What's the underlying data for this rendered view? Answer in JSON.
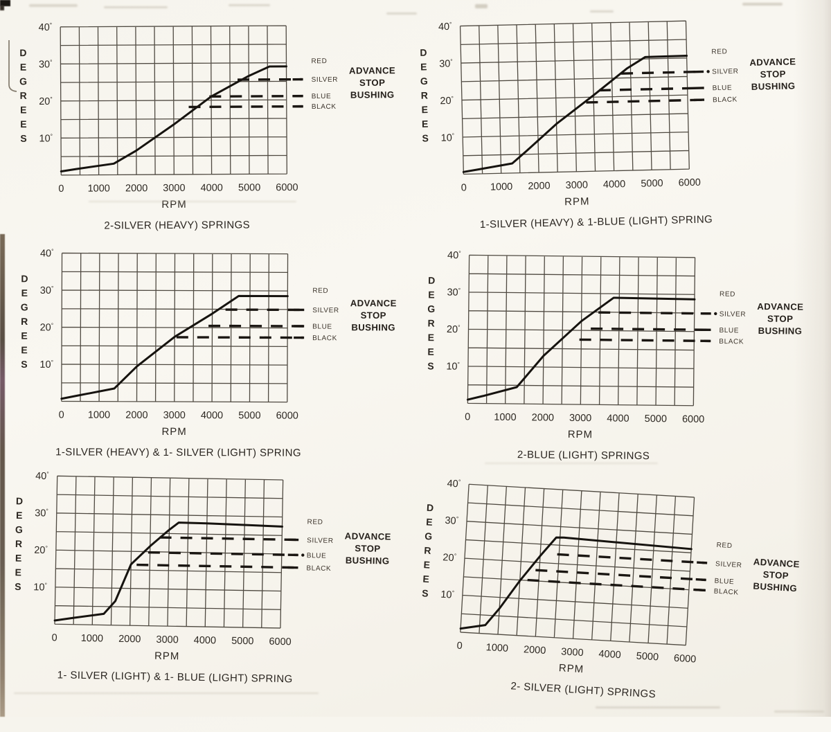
{
  "document": {
    "kind": "scanned page of distributor advance curve charts",
    "background_color": "#f6f4ed",
    "ink_color": "#1a1612"
  },
  "shared": {
    "ylabel": "DEGREES",
    "xlabel": "RPM",
    "y_tick_labels": [
      "40°",
      "30°",
      "20°",
      "10°"
    ],
    "x_tick_labels": [
      "0",
      "1000",
      "2000",
      "3000",
      "4000",
      "5000",
      "6000"
    ],
    "side_note_lines": [
      "ADVANCE",
      "STOP",
      "BUSHING"
    ],
    "stop_bushing_labels": [
      "RED",
      "SILVER",
      "BLUE",
      "BLACK"
    ]
  },
  "chart_data": [
    {
      "type": "line",
      "title": "2-SILVER (HEAVY) SPRINGS",
      "xlabel": "RPM",
      "ylabel": "DEGREES",
      "xlim": [
        0,
        6000
      ],
      "ylim": [
        0,
        40
      ],
      "x_ticks": [
        0,
        1000,
        2000,
        3000,
        4000,
        5000,
        6000
      ],
      "y_ticks": [
        10,
        20,
        30,
        40
      ],
      "grid_step_x": 500,
      "grid_step_y": 5,
      "curve_rpm_deg": [
        [
          0,
          1
        ],
        [
          400,
          1.6
        ],
        [
          1400,
          3
        ],
        [
          2000,
          6.5
        ],
        [
          3000,
          13.5
        ],
        [
          4000,
          21
        ],
        [
          5000,
          26.5
        ],
        [
          5550,
          29
        ],
        [
          6000,
          29
        ]
      ],
      "advance_stops": [
        {
          "label": "RED",
          "degrees": 30.5,
          "dashed": false
        },
        {
          "label": "SILVER",
          "degrees": 25.5,
          "dashed": true,
          "start_rpm": 4700
        },
        {
          "label": "BLUE",
          "degrees": 21,
          "dashed": true,
          "start_rpm": 3950
        },
        {
          "label": "BLACK",
          "degrees": 18.2,
          "dashed": true,
          "start_rpm": 3400
        }
      ],
      "side_note": [
        "ADVANCE",
        "STOP",
        "BUSHING"
      ],
      "note_center_deg": 24.4,
      "title_dx": 4,
      "rotation_deg": -0.3
    },
    {
      "type": "line",
      "title": "1-SILVER (HEAVY) & 1-BLUE (LIGHT) SPRING",
      "xlabel": "RPM",
      "ylabel": "DEGREES",
      "xlim": [
        0,
        6000
      ],
      "ylim": [
        0,
        40
      ],
      "x_ticks": [
        0,
        1000,
        2000,
        3000,
        4000,
        5000,
        6000
      ],
      "y_ticks": [
        10,
        20,
        30,
        40
      ],
      "grid_step_x": 500,
      "grid_step_y": 5,
      "curve_rpm_deg": [
        [
          0,
          0.6
        ],
        [
          400,
          1.2
        ],
        [
          1300,
          2.6
        ],
        [
          1700,
          6
        ],
        [
          2500,
          13
        ],
        [
          3500,
          20.5
        ],
        [
          4400,
          27.5
        ],
        [
          4900,
          30.5
        ],
        [
          6000,
          30.6
        ]
      ],
      "advance_stops": [
        {
          "label": "RED",
          "degrees": 31.6,
          "dashed": false
        },
        {
          "label": "SILVER",
          "degrees": 26.2,
          "dashed": true,
          "start_rpm": 4250,
          "dot": true
        },
        {
          "label": "BLUE",
          "degrees": 21.8,
          "dashed": true,
          "start_rpm": 3650
        },
        {
          "label": "BLACK",
          "degrees": 18.6,
          "dashed": true,
          "start_rpm": 3300
        }
      ],
      "side_note": [
        "ADVANCE",
        "STOP",
        "BUSHING"
      ],
      "note_center_deg": 25.0,
      "title_dx": 27,
      "rotation_deg": -1.3
    },
    {
      "type": "line",
      "title": "1-SILVER (HEAVY) & 1- SILVER (LIGHT) SPRING",
      "xlabel": "RPM",
      "ylabel": "DEGREES",
      "xlim": [
        0,
        6000
      ],
      "ylim": [
        0,
        40
      ],
      "x_ticks": [
        0,
        1000,
        2000,
        3000,
        4000,
        5000,
        6000
      ],
      "y_ticks": [
        10,
        20,
        30,
        40
      ],
      "grid_step_x": 500,
      "grid_step_y": 5,
      "curve_rpm_deg": [
        [
          0,
          0.7
        ],
        [
          400,
          1.5
        ],
        [
          1400,
          3.5
        ],
        [
          2000,
          9.5
        ],
        [
          3000,
          17.5
        ],
        [
          4000,
          23.8
        ],
        [
          4700,
          28.6
        ],
        [
          6000,
          28.6
        ]
      ],
      "advance_stops": [
        {
          "label": "RED",
          "degrees": 30.2,
          "dashed": false
        },
        {
          "label": "SILVER",
          "degrees": 24.9,
          "dashed": true,
          "start_rpm": 4350
        },
        {
          "label": "BLUE",
          "degrees": 20.5,
          "dashed": true,
          "start_rpm": 3900
        },
        {
          "label": "BLACK",
          "degrees": 17.4,
          "dashed": true,
          "start_rpm": 3050
        }
      ],
      "side_note": [
        "ADVANCE",
        "STOP",
        "BUSHING"
      ],
      "note_center_deg": 23.4,
      "title_dx": 6,
      "rotation_deg": 0.2
    },
    {
      "type": "line",
      "title": "2-BLUE (LIGHT) SPRINGS",
      "xlabel": "RPM",
      "ylabel": "DEGREES",
      "xlim": [
        0,
        6000
      ],
      "ylim": [
        0,
        40
      ],
      "x_ticks": [
        0,
        1000,
        2000,
        3000,
        4000,
        5000,
        6000
      ],
      "y_ticks": [
        10,
        20,
        30,
        40
      ],
      "grid_step_x": 500,
      "grid_step_y": 5,
      "curve_rpm_deg": [
        [
          0,
          1
        ],
        [
          400,
          2
        ],
        [
          1300,
          4.5
        ],
        [
          2000,
          13
        ],
        [
          3000,
          22.5
        ],
        [
          3850,
          28.9
        ],
        [
          6000,
          28.7
        ]
      ],
      "advance_stops": [
        {
          "label": "RED",
          "degrees": 30.3,
          "dashed": false
        },
        {
          "label": "SILVER",
          "degrees": 24.9,
          "dashed": true,
          "start_rpm": 3450,
          "dot": true
        },
        {
          "label": "BLUE",
          "degrees": 20.5,
          "dashed": true,
          "start_rpm": 3250
        },
        {
          "label": "BLACK",
          "degrees": 17.5,
          "dashed": true,
          "start_rpm": 2950
        }
      ],
      "side_note": [
        "ADVANCE",
        "STOP",
        "BUSHING"
      ],
      "note_center_deg": 23.6,
      "title_dx": 5,
      "rotation_deg": 0.6
    },
    {
      "type": "line",
      "title": "1- SILVER (LIGHT) & 1- BLUE (LIGHT) SPRING",
      "xlabel": "RPM",
      "ylabel": "DEGREES",
      "xlim": [
        0,
        6000
      ],
      "ylim": [
        0,
        40
      ],
      "x_ticks": [
        0,
        1000,
        2000,
        3000,
        4000,
        5000,
        6000
      ],
      "y_ticks": [
        10,
        20,
        30,
        40
      ],
      "grid_step_x": 500,
      "grid_step_y": 5,
      "curve_rpm_deg": [
        [
          0,
          1
        ],
        [
          500,
          1.8
        ],
        [
          1300,
          3
        ],
        [
          1600,
          6.5
        ],
        [
          2000,
          16.5
        ],
        [
          2500,
          21.5
        ],
        [
          3000,
          26
        ],
        [
          3250,
          28
        ],
        [
          4000,
          27.9
        ],
        [
          6000,
          27.4
        ]
      ],
      "advance_stops": [
        {
          "label": "RED",
          "degrees": 28.9,
          "dashed": false
        },
        {
          "label": "SILVER",
          "degrees": 23.9,
          "dashed": true,
          "start_rpm": 2750
        },
        {
          "label": "BLUE",
          "degrees": 19.8,
          "dashed": true,
          "start_rpm": 2450,
          "dot": true
        },
        {
          "label": "BLACK",
          "degrees": 16.4,
          "dashed": true,
          "start_rpm": 2150
        }
      ],
      "side_note": [
        "ADVANCE",
        "STOP",
        "BUSHING"
      ],
      "note_center_deg": 21.8,
      "title_dx": 12,
      "rotation_deg": 1.0
    },
    {
      "type": "line",
      "title": "2- SILVER (LIGHT) SPRINGS",
      "xlabel": "RPM",
      "ylabel": "DEGREES",
      "xlim": [
        0,
        6000
      ],
      "ylim": [
        0,
        40
      ],
      "x_ticks": [
        0,
        1000,
        2000,
        3000,
        4000,
        5000,
        6000
      ],
      "y_ticks": [
        10,
        20,
        30,
        40
      ],
      "grid_step_x": 500,
      "grid_step_y": 5,
      "curve_rpm_deg": [
        [
          0,
          1
        ],
        [
          650,
          2.3
        ],
        [
          1000,
          7
        ],
        [
          1500,
          14.8
        ],
        [
          2000,
          21.8
        ],
        [
          2400,
          27
        ],
        [
          2600,
          27.1
        ],
        [
          6000,
          26
        ]
      ],
      "advance_stops": [
        {
          "label": "RED",
          "degrees": 27.6,
          "dashed": false
        },
        {
          "label": "SILVER",
          "degrees": 22.5,
          "dashed": true,
          "start_rpm": 2450
        },
        {
          "label": "BLUE",
          "degrees": 17.9,
          "dashed": true,
          "start_rpm": 1900
        },
        {
          "label": "BLACK",
          "degrees": 15.1,
          "dashed": true,
          "start_rpm": 1700
        }
      ],
      "side_note": [
        "ADVANCE",
        "STOP",
        "BUSHING"
      ],
      "note_center_deg": 20.2,
      "title_dx": 19,
      "rotation_deg": 3.3
    }
  ]
}
